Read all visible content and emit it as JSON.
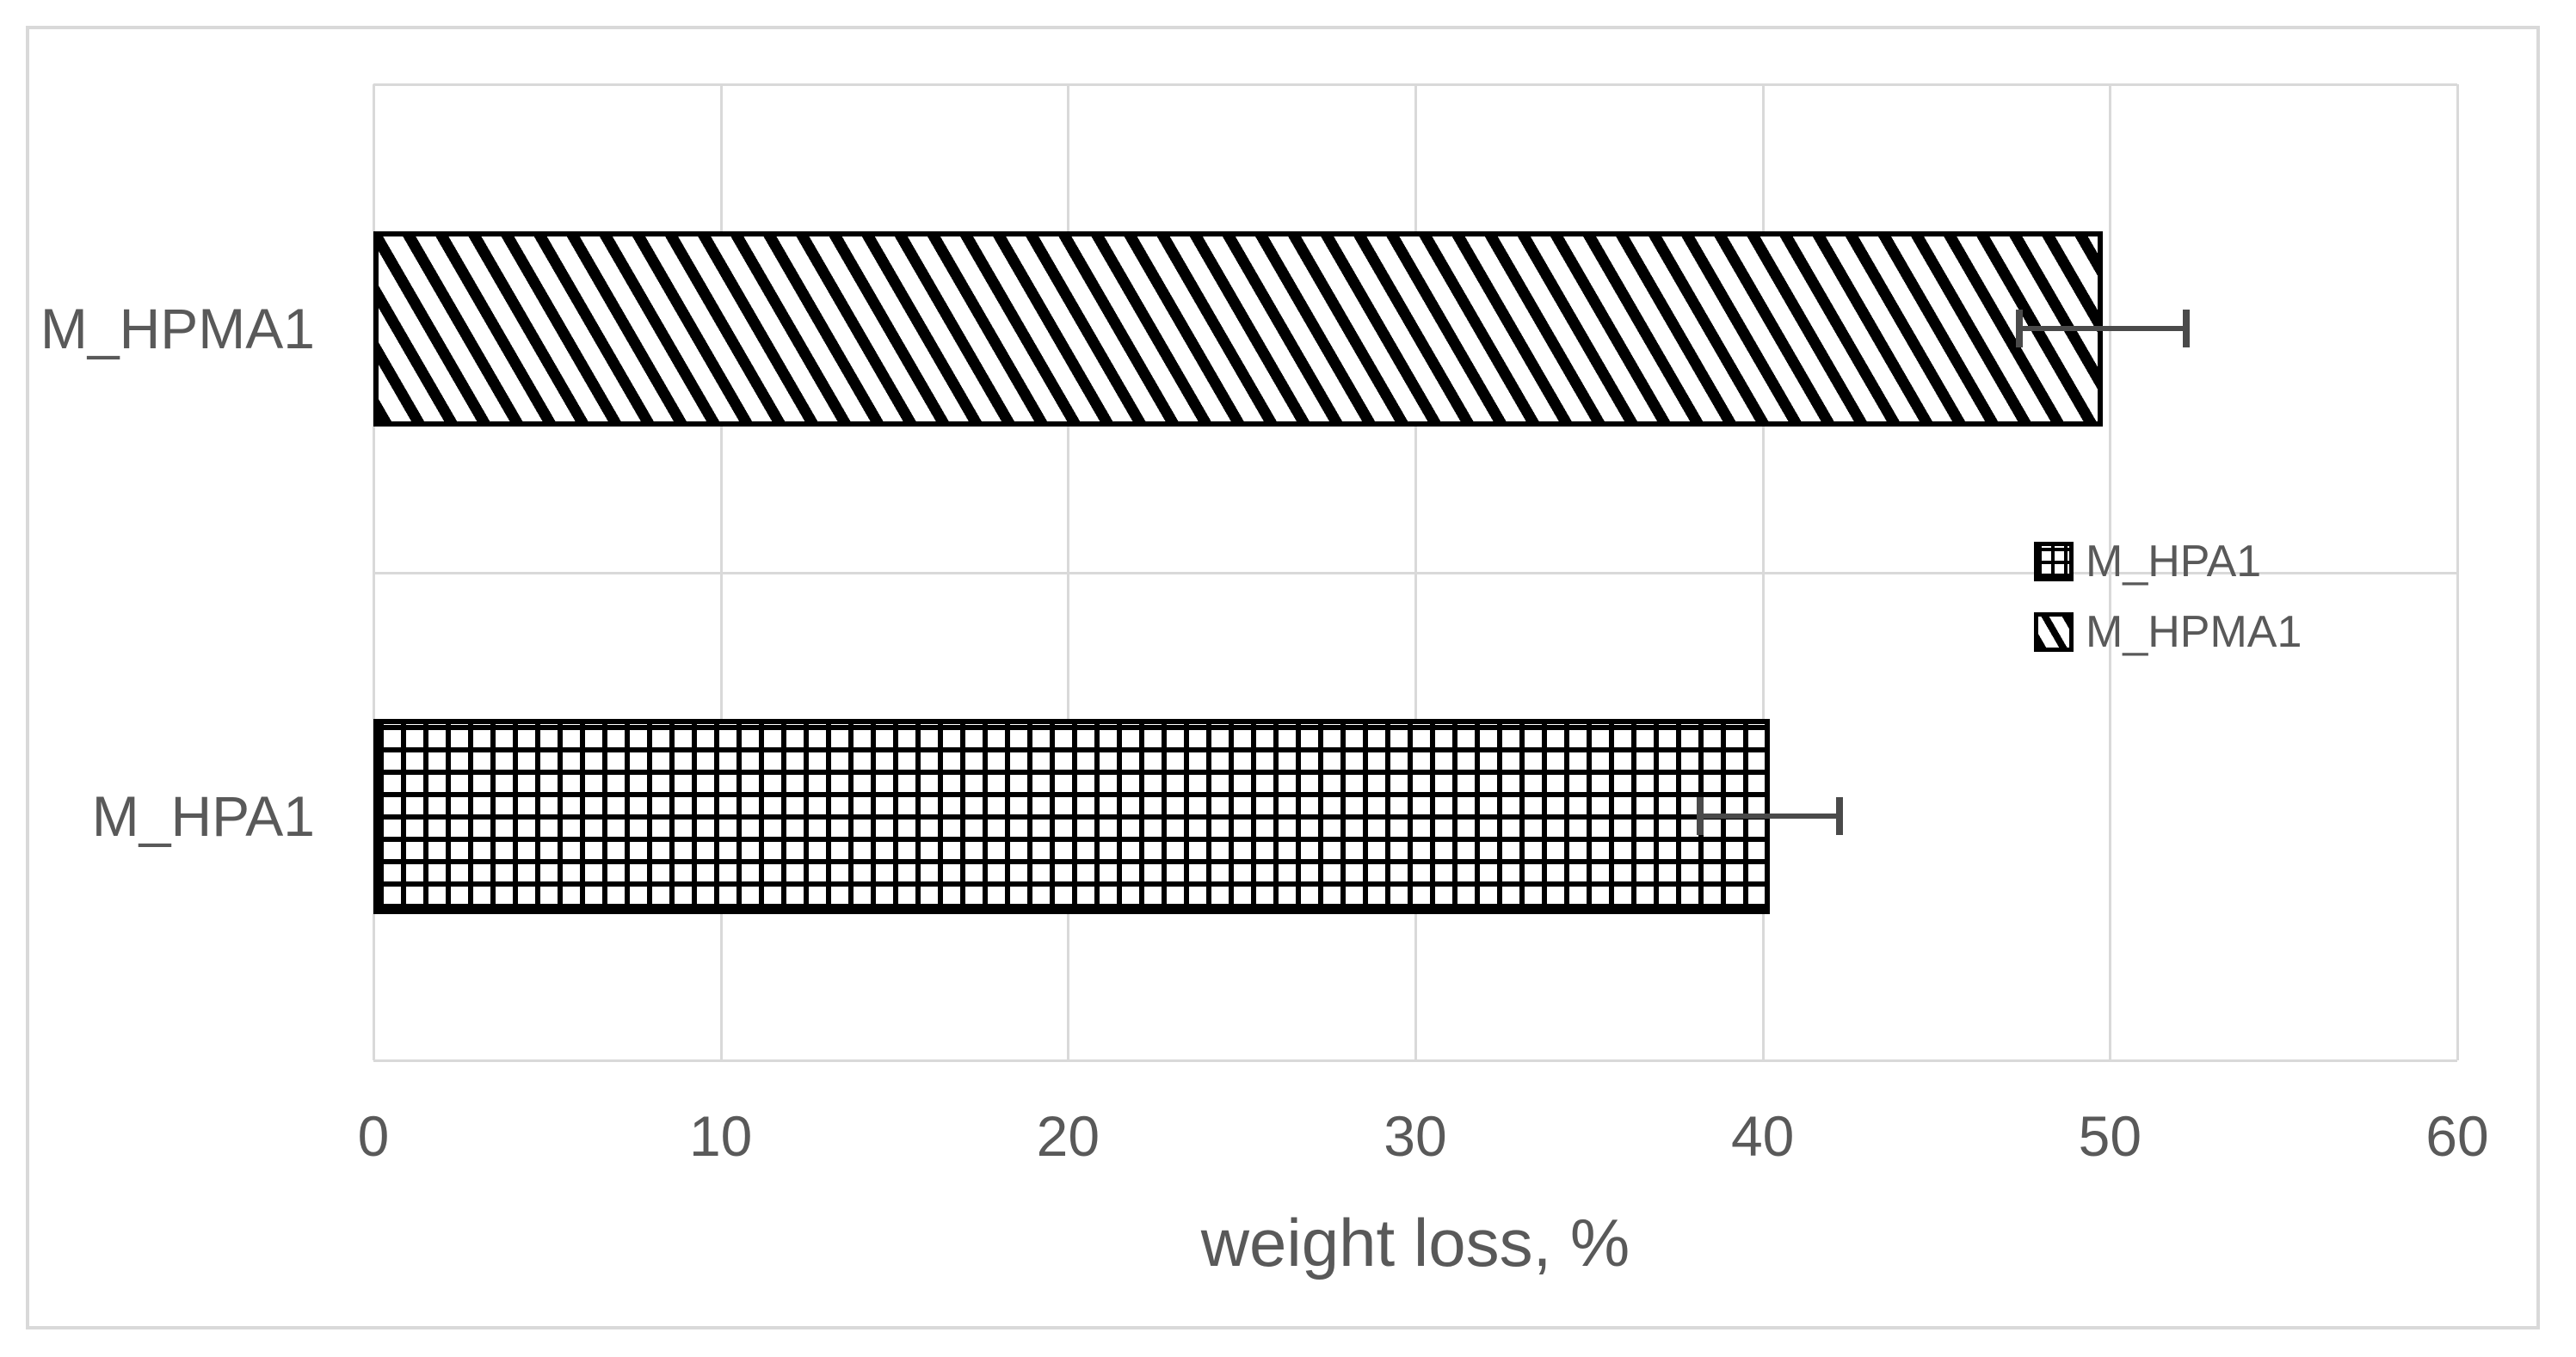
{
  "chart_data": {
    "type": "bar",
    "orientation": "horizontal",
    "title": "",
    "xlabel": "weight loss, %",
    "ylabel": "",
    "xlim": [
      0,
      60
    ],
    "xticks": [
      0,
      10,
      20,
      30,
      40,
      50,
      60
    ],
    "grid": true,
    "categories_top_to_bottom": [
      "M_HPMA1",
      "M_HPA1"
    ],
    "series": [
      {
        "name": "M_HPMA1",
        "value": 49.8,
        "error": 2.5,
        "pattern": "diagonal"
      },
      {
        "name": "M_HPA1",
        "value": 40.2,
        "error": 2.1,
        "pattern": "grid"
      }
    ],
    "legend_position": "right-center",
    "legend": [
      {
        "label": "M_HPA1",
        "pattern": "grid"
      },
      {
        "label": "M_HPMA1",
        "pattern": "diagonal"
      }
    ]
  },
  "colors": {
    "text": "#595959",
    "gridline": "#D9D9D9",
    "figure_border": "#D9D9D9",
    "bar_pattern": "#000000",
    "error_bar": "#4a4a4a",
    "background": "#ffffff"
  }
}
